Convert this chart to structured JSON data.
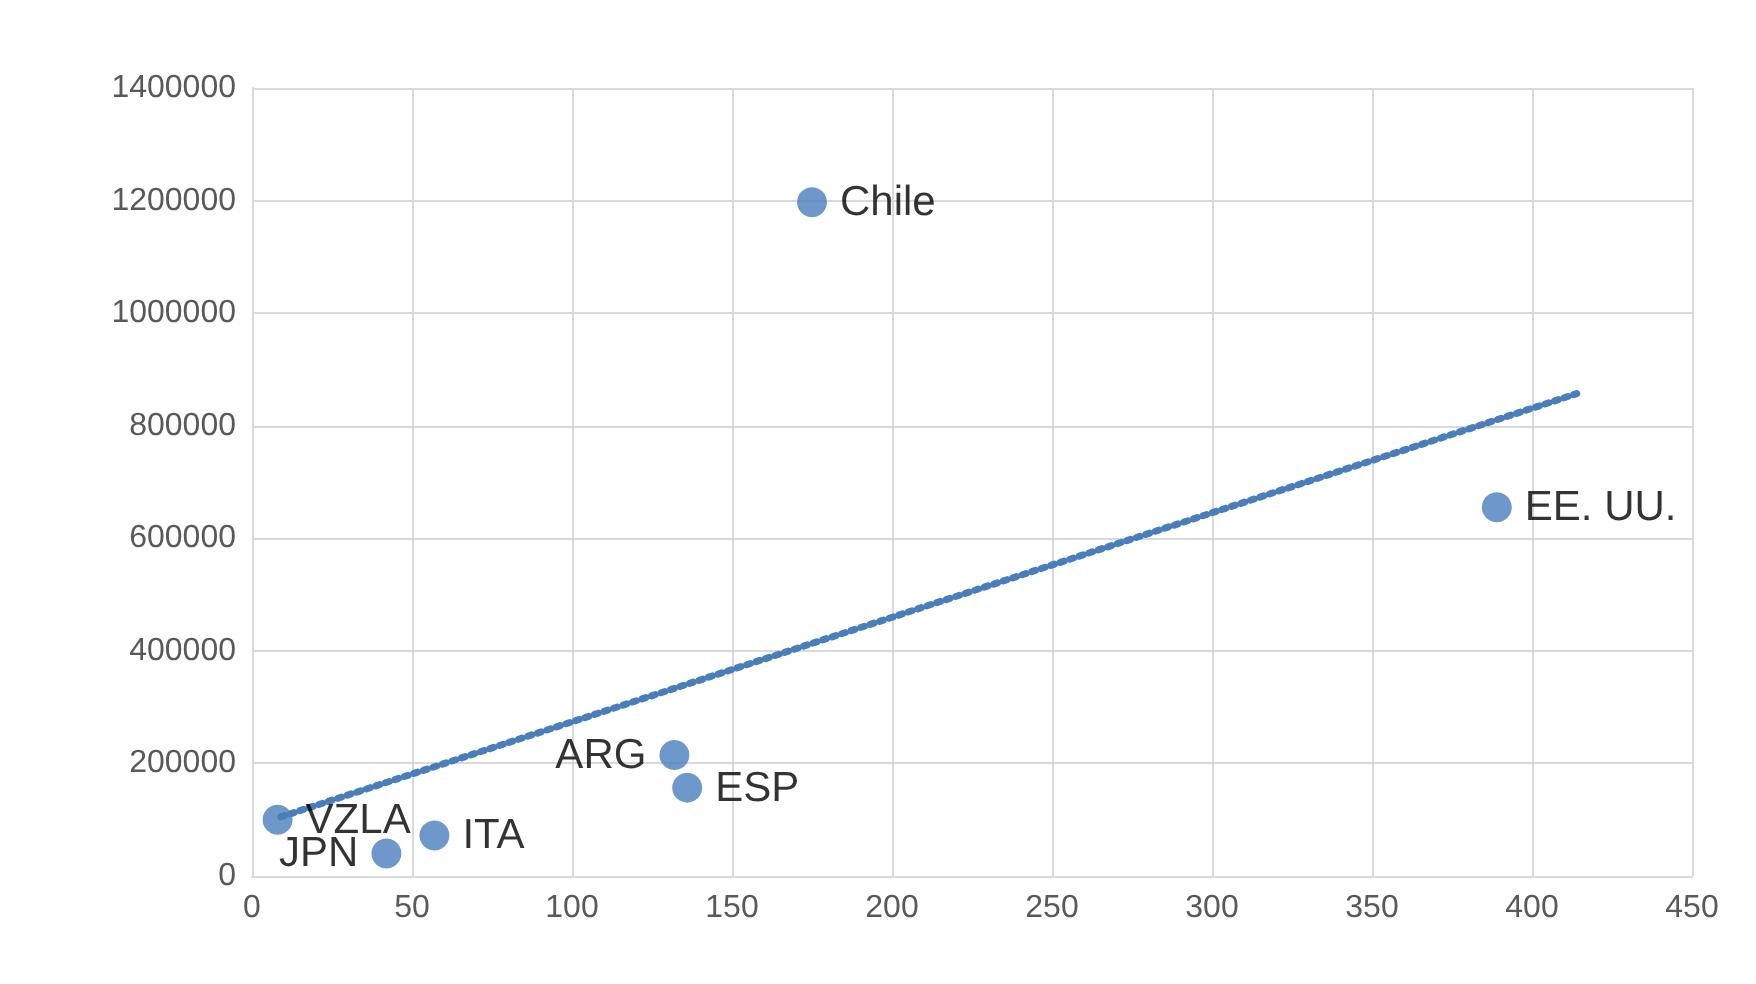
{
  "chart_data": {
    "type": "scatter",
    "x": [
      8,
      42,
      57,
      132,
      136,
      175,
      389
    ],
    "series": [
      {
        "color": "#4a7ebb",
        "values": [
          100000,
          40000,
          72000,
          215000,
          157000,
          1197000,
          655000
        ],
        "marker": "circle"
      },
      {
        "type": "line",
        "color": "#4a7ebb",
        "x": [
          9,
          414
        ],
        "values": [
          105000,
          857000
        ],
        "line_style": "dotted",
        "marker": "none"
      }
    ],
    "xlim": [
      0,
      450
    ],
    "xticks": [
      0,
      50,
      100,
      150,
      200,
      250,
      300,
      350,
      400,
      450
    ],
    "ylim": [
      0,
      1400000
    ],
    "yticks": [
      0,
      200000,
      400000,
      600000,
      800000,
      1000000,
      1200000,
      1400000
    ],
    "grid": true,
    "annotations": [
      {
        "text": "VZLA",
        "x": 8,
        "y": 100000
      },
      {
        "text": "JPN",
        "x": 42,
        "y": 40000
      },
      {
        "text": "ITA",
        "x": 57,
        "y": 72000
      },
      {
        "text": "ARG",
        "x": 132,
        "y": 215000
      },
      {
        "text": "ESP",
        "x": 136,
        "y": 157000
      },
      {
        "text": "Chile",
        "x": 175,
        "y": 1197000
      },
      {
        "text": "EE. UU.",
        "x": 389,
        "y": 655000
      }
    ]
  }
}
